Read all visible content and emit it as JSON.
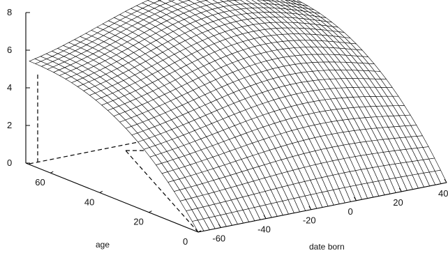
{
  "chart_data": {
    "type": "surface",
    "title": "",
    "xlabel": "date born",
    "ylabel": "age",
    "zlabel": "",
    "xlim": [
      -70,
      40
    ],
    "ylim": [
      0,
      70
    ],
    "zlim": [
      0,
      8
    ],
    "x_ticks": [
      "-60",
      "-40",
      "-20",
      "0",
      "20",
      "40"
    ],
    "y_ticks": [
      "0",
      "20",
      "40",
      "60"
    ],
    "z_ticks": [
      "0",
      "2",
      "4",
      "6",
      "8"
    ],
    "grid": false,
    "box": "dashed",
    "surface": {
      "x_range": [
        -70,
        40
      ],
      "y_range": [
        0,
        70
      ],
      "x_steps": 44,
      "y_steps": 28,
      "shape": "concave in age, peak height about 7.8 near age 70 and date born 0",
      "corner_values": {
        "x_min_y_min": 0,
        "x_min_y_max": 4.6,
        "x_max_y_min": 0,
        "x_max_y_max": 7.1
      },
      "edge_color": "#000000",
      "face_color": "#ffffff"
    }
  }
}
